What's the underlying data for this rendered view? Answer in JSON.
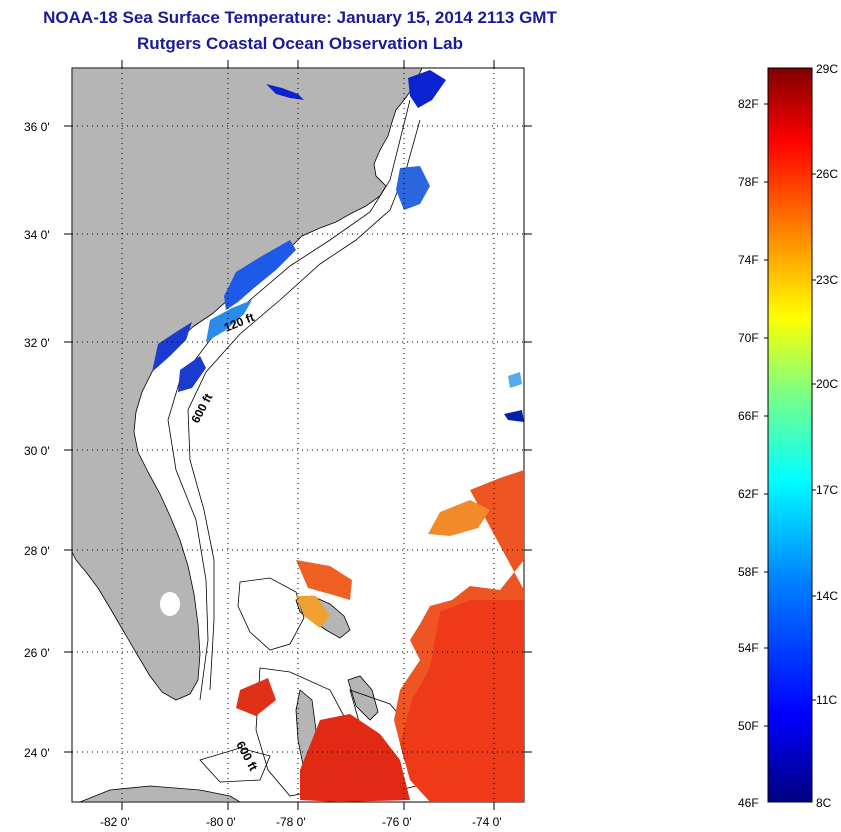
{
  "title": {
    "line1": "NOAA-18 Sea Surface Temperature:  January 15, 2014 2113 GMT",
    "line2": "Rutgers Coastal Ocean Observation Lab"
  },
  "map": {
    "lat_labels": [
      "36 0'",
      "34 0'",
      "32 0'",
      "30 0'",
      "28 0'",
      "26 0'",
      "24 0'"
    ],
    "lon_labels": [
      "-82 0'",
      "-80 0'",
      "-78 0'",
      "-76 0'",
      "-74 0'"
    ],
    "contour_labels": [
      "120 ft",
      "600 ft",
      "600 ft"
    ],
    "land_color": "#b5b5b5"
  },
  "colorbar": {
    "celsius_labels": [
      "29C",
      "26C",
      "23C",
      "20C",
      "17C",
      "14C",
      "11C",
      "8C"
    ],
    "fahrenheit_labels": [
      "82F",
      "78F",
      "74F",
      "70F",
      "66F",
      "62F",
      "58F",
      "54F",
      "50F",
      "46F"
    ],
    "colors": [
      "#800000",
      "#ff0000",
      "#ff8000",
      "#ffff00",
      "#80ff80",
      "#00ffff",
      "#0080ff",
      "#0000ff",
      "#000080"
    ]
  }
}
